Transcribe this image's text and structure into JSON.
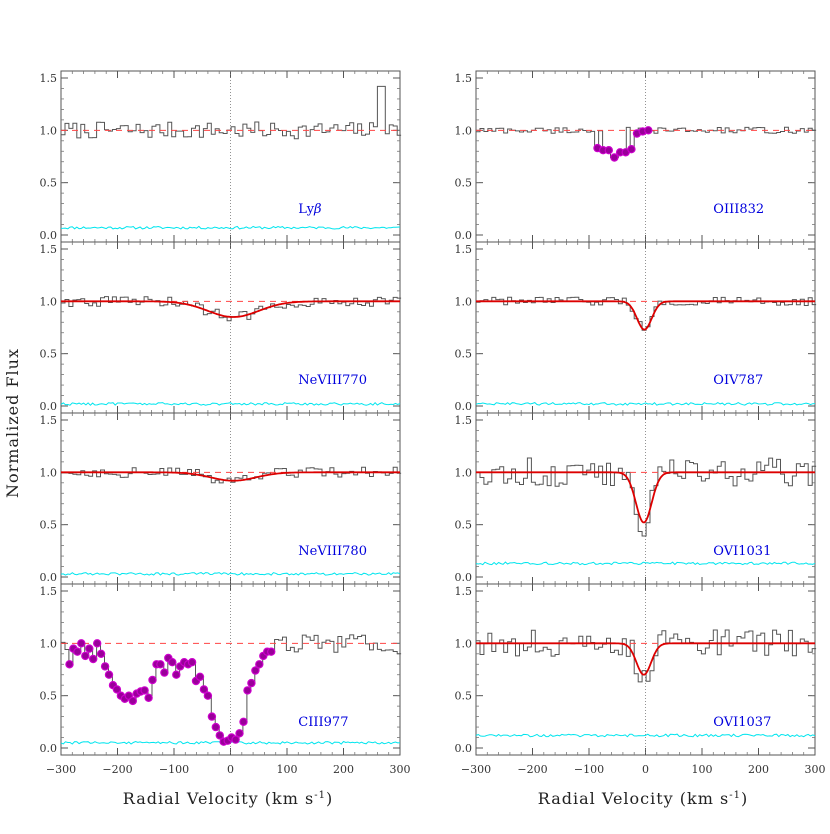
{
  "figure": {
    "ylabel": "Normalized Flux",
    "xlabel_left": "Radial Velocity (km s",
    "xlabel_right": "Radial Velocity (km s",
    "xlabel_sup": "-1",
    "xlabel_close": ")"
  },
  "colors": {
    "spectrum": "#555555",
    "continuum": "#ff4444",
    "model": "#dd0000",
    "error": "#00e5ee",
    "marker_fill": "#990099",
    "marker_edge": "#cc00cc",
    "ion_label": "#0000dd"
  },
  "chart_data": [
    {
      "id": "lyb",
      "type": "line",
      "title": "Lyβ",
      "label_main": "Ly",
      "label_greek": "β",
      "xlim": [
        -300,
        300
      ],
      "ylim": [
        0,
        1.5
      ],
      "xticks": [
        -300,
        -200,
        -100,
        0,
        100,
        200,
        300
      ],
      "yticks": [
        0.0,
        0.5,
        1.0,
        1.5
      ],
      "ytick_labels": [
        "0.0",
        "0.5",
        "1.0",
        "1.5"
      ],
      "xtick_labels": [
        "",
        "",
        "",
        "",
        "",
        "",
        ""
      ],
      "continuum": 1.0,
      "error_level": 0.07,
      "spectrum_noise": 0.08,
      "model": null,
      "markers": null,
      "spike": {
        "v": 265,
        "flux": 1.42
      }
    },
    {
      "id": "oiii832",
      "type": "line",
      "title": "OIII832",
      "label_main": "OIII832",
      "label_greek": "",
      "xlim": [
        -300,
        300
      ],
      "ylim": [
        0,
        1.5
      ],
      "xticks": [
        -300,
        -200,
        -100,
        0,
        100,
        200,
        300
      ],
      "yticks": [
        0.0,
        0.5,
        1.0,
        1.5
      ],
      "ytick_labels": [
        "0.0",
        "0.5",
        "1.0",
        "1.5"
      ],
      "xtick_labels": [
        "",
        "",
        "",
        "",
        "",
        "",
        ""
      ],
      "continuum": 1.0,
      "error_level": null,
      "spectrum_noise": 0.03,
      "model": null,
      "markers": {
        "v": [
          -85,
          -75,
          -65,
          -55,
          -45,
          -35,
          -25,
          -15,
          -5,
          5
        ],
        "flux": [
          0.83,
          0.81,
          0.81,
          0.74,
          0.79,
          0.79,
          0.82,
          0.97,
          0.99,
          1.0
        ]
      }
    },
    {
      "id": "neviii770",
      "type": "line",
      "title": "NeVIII770",
      "label_main": "NeVIII770",
      "label_greek": "",
      "xlim": [
        -300,
        300
      ],
      "ylim": [
        0,
        1.5
      ],
      "xticks": [
        -300,
        -200,
        -100,
        0,
        100,
        200,
        300
      ],
      "yticks": [
        0.0,
        0.5,
        1.0,
        1.5
      ],
      "ytick_labels": [
        "0.0",
        "0.5",
        "1.0",
        "1.5"
      ],
      "xtick_labels": [
        "",
        "",
        "",
        "",
        "",
        "",
        ""
      ],
      "continuum": 1.0,
      "error_level": 0.02,
      "spectrum_noise": 0.05,
      "model": {
        "center": 5,
        "depth": 0.15,
        "sigma": 45
      },
      "markers": null
    },
    {
      "id": "oiv787",
      "type": "line",
      "title": "OIV787",
      "label_main": "OIV787",
      "label_greek": "",
      "xlim": [
        -300,
        300
      ],
      "ylim": [
        0,
        1.5
      ],
      "xticks": [
        -300,
        -200,
        -100,
        0,
        100,
        200,
        300
      ],
      "yticks": [
        0.0,
        0.5,
        1.0,
        1.5
      ],
      "ytick_labels": [
        "0.0",
        "0.5",
        "1.0",
        "1.5"
      ],
      "xtick_labels": [
        "",
        "",
        "",
        "",
        "",
        "",
        ""
      ],
      "continuum": 1.0,
      "error_level": 0.02,
      "spectrum_noise": 0.04,
      "model": {
        "center": -2,
        "depth": 0.27,
        "sigma": 13
      },
      "markers": null
    },
    {
      "id": "neviii780",
      "type": "line",
      "title": "NeVIII780",
      "label_main": "NeVIII780",
      "label_greek": "",
      "xlim": [
        -300,
        300
      ],
      "ylim": [
        0,
        1.5
      ],
      "xticks": [
        -300,
        -200,
        -100,
        0,
        100,
        200,
        300
      ],
      "yticks": [
        0.0,
        0.5,
        1.0,
        1.5
      ],
      "ytick_labels": [
        "0.0",
        "0.5",
        "1.0",
        "1.5"
      ],
      "xtick_labels": [
        "",
        "",
        "",
        "",
        "",
        "",
        ""
      ],
      "continuum": 1.0,
      "error_level": 0.03,
      "spectrum_noise": 0.05,
      "model": {
        "center": 5,
        "depth": 0.08,
        "sigma": 40
      },
      "markers": null
    },
    {
      "id": "ovi1031",
      "type": "line",
      "title": "OVI1031",
      "label_main": "OVI1031",
      "label_greek": "",
      "xlim": [
        -300,
        300
      ],
      "ylim": [
        0,
        1.5
      ],
      "xticks": [
        -300,
        -200,
        -100,
        0,
        100,
        200,
        300
      ],
      "yticks": [
        0.0,
        0.5,
        1.0,
        1.5
      ],
      "ytick_labels": [
        "0.0",
        "0.5",
        "1.0",
        "1.5"
      ],
      "xtick_labels": [
        "",
        "",
        "",
        "",
        "",
        "",
        ""
      ],
      "continuum": 1.0,
      "error_level": 0.13,
      "spectrum_noise": 0.14,
      "model": {
        "center": -3,
        "depth": 0.48,
        "sigma": 14
      },
      "markers": null
    },
    {
      "id": "ciii977",
      "type": "line",
      "title": "CIII977",
      "label_main": "CIII977",
      "label_greek": "",
      "xlim": [
        -300,
        300
      ],
      "ylim": [
        0,
        1.5
      ],
      "xticks": [
        -300,
        -200,
        -100,
        0,
        100,
        200,
        300
      ],
      "yticks": [
        0.0,
        0.5,
        1.0,
        1.5
      ],
      "ytick_labels": [
        "0.0",
        "0.5",
        "1.0",
        "1.5"
      ],
      "xtick_labels": [
        "−300",
        "−200",
        "−100",
        "0",
        "100",
        "200",
        "300"
      ],
      "continuum": 1.0,
      "error_level": 0.05,
      "spectrum_noise": 0.1,
      "model": null,
      "markers": {
        "v": [
          -285,
          -278,
          -271,
          -264,
          -257,
          -250,
          -243,
          -236,
          -229,
          -222,
          -215,
          -208,
          -201,
          -194,
          -187,
          -180,
          -173,
          -166,
          -159,
          -152,
          -145,
          -138,
          -131,
          -124,
          -117,
          -110,
          -103,
          -96,
          -89,
          -82,
          -75,
          -68,
          -61,
          -54,
          -47,
          -40,
          -33,
          -26,
          -19,
          -12,
          -5,
          2,
          9,
          16,
          23,
          30,
          37,
          44,
          51,
          58,
          65,
          72
        ],
        "flux": [
          0.8,
          0.95,
          0.92,
          1.0,
          0.88,
          0.95,
          0.85,
          1.0,
          0.9,
          0.78,
          0.7,
          0.6,
          0.56,
          0.5,
          0.47,
          0.5,
          0.45,
          0.52,
          0.54,
          0.55,
          0.48,
          0.65,
          0.8,
          0.8,
          0.72,
          0.86,
          0.82,
          0.7,
          0.78,
          0.82,
          0.8,
          0.82,
          0.64,
          0.68,
          0.56,
          0.5,
          0.3,
          0.2,
          0.12,
          0.06,
          0.07,
          0.1,
          0.08,
          0.14,
          0.25,
          0.55,
          0.62,
          0.74,
          0.8,
          0.88,
          0.92,
          0.92
        ]
      }
    },
    {
      "id": "ovi1037",
      "type": "line",
      "title": "OVI1037",
      "label_main": "OVI1037",
      "label_greek": "",
      "xlim": [
        -300,
        300
      ],
      "ylim": [
        0,
        1.5
      ],
      "xticks": [
        -300,
        -200,
        -100,
        0,
        100,
        200,
        300
      ],
      "yticks": [
        0.0,
        0.5,
        1.0,
        1.5
      ],
      "ytick_labels": [
        "0.0",
        "0.5",
        "1.0",
        "1.5"
      ],
      "xtick_labels": [
        "−300",
        "−200",
        "−100",
        "0",
        "100",
        "200",
        "300"
      ],
      "continuum": 1.0,
      "error_level": 0.12,
      "spectrum_noise": 0.13,
      "model": {
        "center": -3,
        "depth": 0.3,
        "sigma": 13
      },
      "markers": null
    }
  ]
}
